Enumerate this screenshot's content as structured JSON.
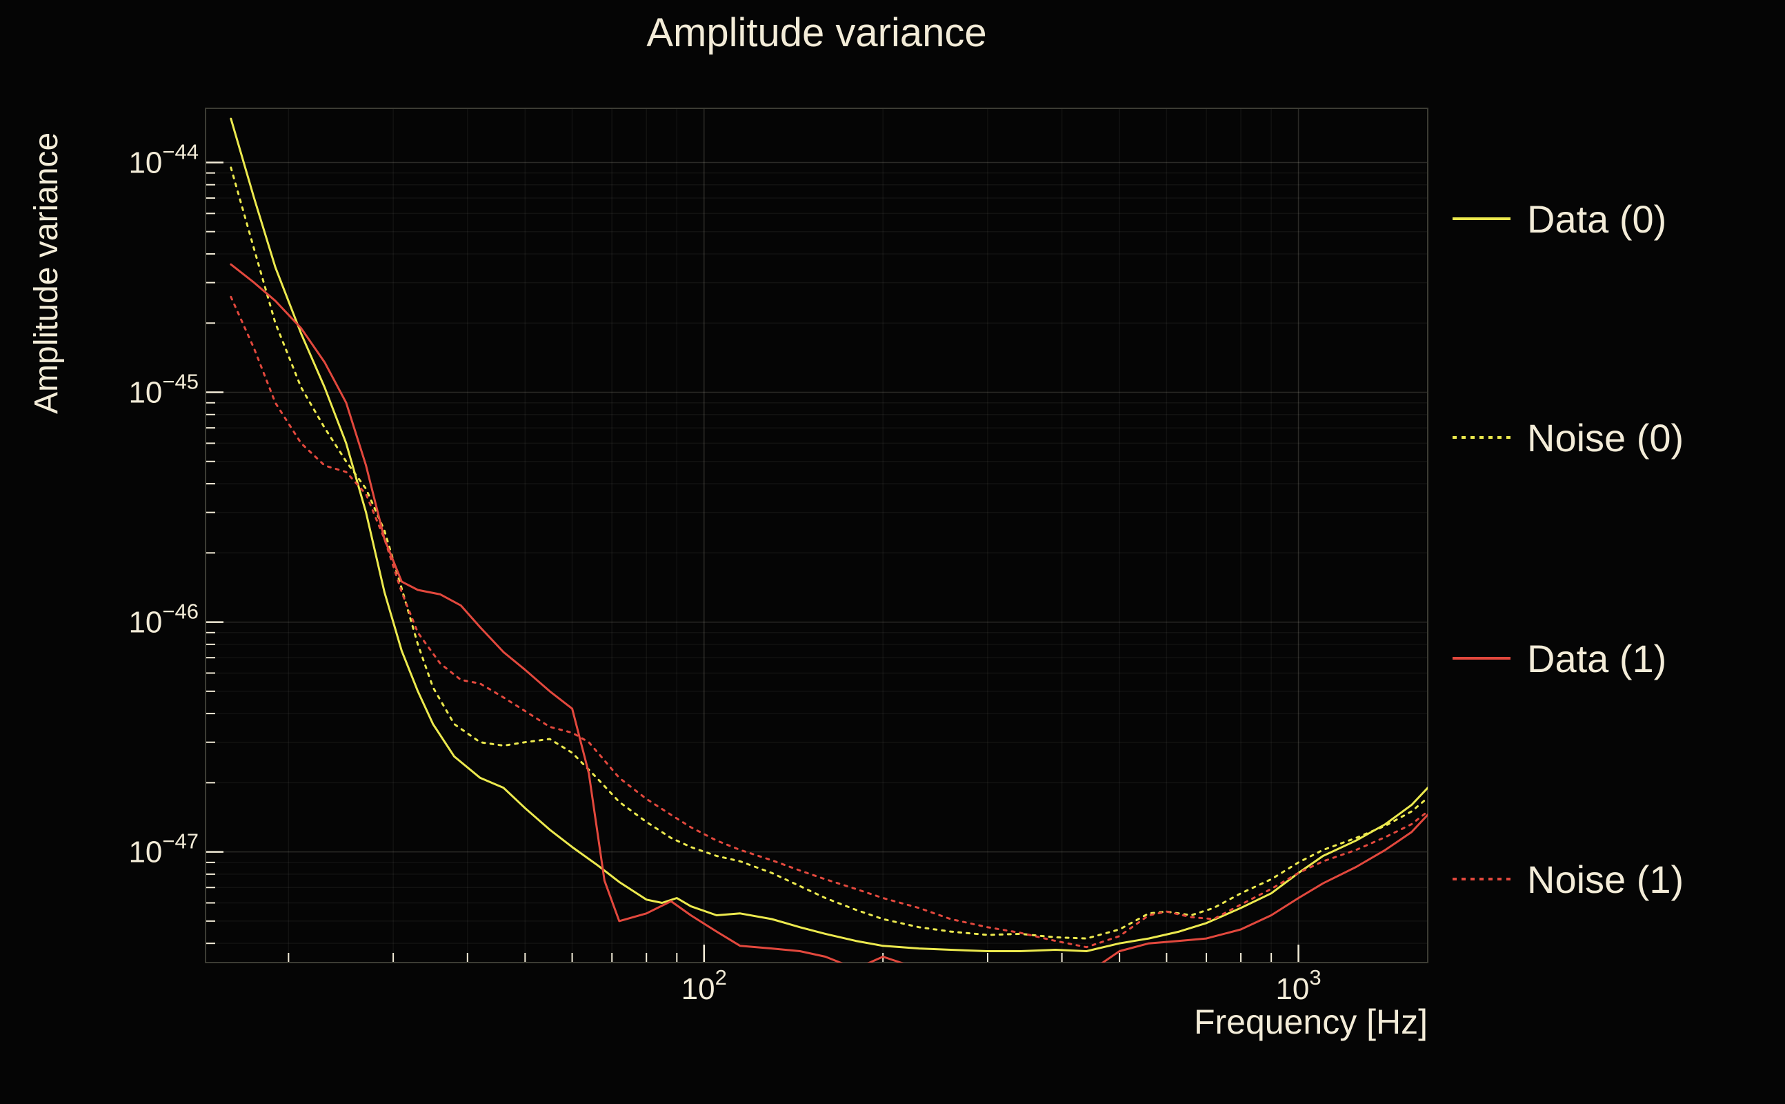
{
  "chart_data": {
    "type": "line",
    "title": "Amplitude variance",
    "xlabel": "Frequency [Hz]",
    "ylabel": "Amplitude variance",
    "x_scale": "log",
    "y_scale": "log",
    "xlim": [
      14.5,
      1650
    ],
    "ylim": [
      3.3e-48,
      1.72e-44
    ],
    "grid": true,
    "legend_position": "right",
    "x_ticks": [
      {
        "value": 100,
        "base": "10",
        "exp": "2"
      },
      {
        "value": 1000,
        "base": "10",
        "exp": "3"
      }
    ],
    "y_ticks": [
      {
        "value": 1e-44,
        "base": "10",
        "exp": "−44"
      },
      {
        "value": 1e-45,
        "base": "10",
        "exp": "−45"
      },
      {
        "value": 1e-46,
        "base": "10",
        "exp": "−46"
      },
      {
        "value": 1e-47,
        "base": "10",
        "exp": "−47"
      }
    ],
    "colors": {
      "background": "#050505",
      "text": "#f3ecd8",
      "frame": "#3c3c34",
      "grid_major": "rgba(243,236,216,0.16)",
      "grid_minor": "rgba(243,236,216,0.06)",
      "yellow": "#ece94e",
      "red": "#e2483d"
    },
    "series": [
      {
        "name": "Data (0)",
        "color": "#ece94e",
        "style": "solid",
        "points": [
          [
            16,
            1.55e-44
          ],
          [
            17.5,
            7e-45
          ],
          [
            19,
            3.5e-45
          ],
          [
            21,
            1.8e-45
          ],
          [
            23,
            1.05e-45
          ],
          [
            25,
            6e-46
          ],
          [
            27,
            3e-46
          ],
          [
            29,
            1.35e-46
          ],
          [
            31,
            7.5e-47
          ],
          [
            33,
            5e-47
          ],
          [
            35,
            3.6e-47
          ],
          [
            38,
            2.6e-47
          ],
          [
            42,
            2.1e-47
          ],
          [
            46,
            1.9e-47
          ],
          [
            50,
            1.55e-47
          ],
          [
            55,
            1.25e-47
          ],
          [
            60,
            1.05e-47
          ],
          [
            66,
            8.8e-48
          ],
          [
            72,
            7.4e-48
          ],
          [
            80,
            6.2e-48
          ],
          [
            85,
            6e-48
          ],
          [
            90,
            6.3e-48
          ],
          [
            95,
            5.8e-48
          ],
          [
            105,
            5.3e-48
          ],
          [
            115,
            5.4e-48
          ],
          [
            130,
            5.1e-48
          ],
          [
            145,
            4.7e-48
          ],
          [
            160,
            4.4e-48
          ],
          [
            180,
            4.1e-48
          ],
          [
            200,
            3.9e-48
          ],
          [
            230,
            3.8e-48
          ],
          [
            260,
            3.75e-48
          ],
          [
            300,
            3.7e-48
          ],
          [
            340,
            3.7e-48
          ],
          [
            390,
            3.75e-48
          ],
          [
            440,
            3.7e-48
          ],
          [
            500,
            4e-48
          ],
          [
            560,
            4.2e-48
          ],
          [
            630,
            4.5e-48
          ],
          [
            700,
            4.9e-48
          ],
          [
            800,
            5.7e-48
          ],
          [
            900,
            6.6e-48
          ],
          [
            1000,
            8.1e-48
          ],
          [
            1100,
            9.6e-48
          ],
          [
            1250,
            1.12e-47
          ],
          [
            1400,
            1.32e-47
          ],
          [
            1550,
            1.6e-47
          ],
          [
            1650,
            1.9e-47
          ]
        ]
      },
      {
        "name": "Noise (0)",
        "color": "#ece94e",
        "style": "dotted",
        "points": [
          [
            16,
            9.5e-45
          ],
          [
            17.5,
            4.2e-45
          ],
          [
            19,
            2e-45
          ],
          [
            21,
            1.05e-45
          ],
          [
            23,
            7e-46
          ],
          [
            25,
            5e-46
          ],
          [
            27,
            3.8e-46
          ],
          [
            29,
            2.5e-46
          ],
          [
            31,
            1.4e-46
          ],
          [
            33,
            8e-47
          ],
          [
            35,
            5.2e-47
          ],
          [
            38,
            3.6e-47
          ],
          [
            42,
            3e-47
          ],
          [
            46,
            2.9e-47
          ],
          [
            50,
            3e-47
          ],
          [
            55,
            3.1e-47
          ],
          [
            60,
            2.7e-47
          ],
          [
            66,
            2.1e-47
          ],
          [
            72,
            1.65e-47
          ],
          [
            80,
            1.35e-47
          ],
          [
            88,
            1.15e-47
          ],
          [
            95,
            1.05e-47
          ],
          [
            105,
            9.6e-48
          ],
          [
            115,
            9.1e-48
          ],
          [
            130,
            8.1e-48
          ],
          [
            145,
            7.1e-48
          ],
          [
            160,
            6.3e-48
          ],
          [
            180,
            5.6e-48
          ],
          [
            200,
            5.1e-48
          ],
          [
            230,
            4.7e-48
          ],
          [
            260,
            4.5e-48
          ],
          [
            300,
            4.35e-48
          ],
          [
            340,
            4.4e-48
          ],
          [
            390,
            4.25e-48
          ],
          [
            440,
            4.2e-48
          ],
          [
            500,
            4.6e-48
          ],
          [
            560,
            5.4e-48
          ],
          [
            600,
            5.5e-48
          ],
          [
            660,
            5.3e-48
          ],
          [
            720,
            5.7e-48
          ],
          [
            800,
            6.6e-48
          ],
          [
            900,
            7.6e-48
          ],
          [
            1000,
            9e-48
          ],
          [
            1100,
            1.02e-47
          ],
          [
            1250,
            1.15e-47
          ],
          [
            1400,
            1.3e-47
          ],
          [
            1550,
            1.5e-47
          ],
          [
            1650,
            1.72e-47
          ]
        ]
      },
      {
        "name": "Data (1)",
        "color": "#e2483d",
        "style": "solid",
        "points": [
          [
            16,
            3.6e-45
          ],
          [
            17.5,
            3e-45
          ],
          [
            19,
            2.5e-45
          ],
          [
            21,
            1.9e-45
          ],
          [
            23,
            1.35e-45
          ],
          [
            25,
            9e-46
          ],
          [
            27,
            4.8e-46
          ],
          [
            29,
            2.3e-46
          ],
          [
            31,
            1.5e-46
          ],
          [
            33,
            1.38e-46
          ],
          [
            36,
            1.32e-46
          ],
          [
            39,
            1.18e-46
          ],
          [
            42,
            9.5e-47
          ],
          [
            46,
            7.4e-47
          ],
          [
            50,
            6.2e-47
          ],
          [
            55,
            5e-47
          ],
          [
            60,
            4.2e-47
          ],
          [
            64,
            2.2e-47
          ],
          [
            68,
            7.5e-48
          ],
          [
            72,
            5e-48
          ],
          [
            80,
            5.4e-48
          ],
          [
            88,
            6.1e-48
          ],
          [
            95,
            5.3e-48
          ],
          [
            105,
            4.5e-48
          ],
          [
            115,
            3.9e-48
          ],
          [
            130,
            3.8e-48
          ],
          [
            145,
            3.7e-48
          ],
          [
            160,
            3.5e-48
          ],
          [
            180,
            3.1e-48
          ],
          [
            200,
            3.5e-48
          ],
          [
            230,
            3.1e-48
          ],
          [
            260,
            2.9e-48
          ],
          [
            300,
            3e-48
          ],
          [
            340,
            3.1e-48
          ],
          [
            390,
            3.05e-48
          ],
          [
            440,
            2.95e-48
          ],
          [
            500,
            3.7e-48
          ],
          [
            560,
            4e-48
          ],
          [
            630,
            4.1e-48
          ],
          [
            700,
            4.2e-48
          ],
          [
            800,
            4.6e-48
          ],
          [
            900,
            5.3e-48
          ],
          [
            1000,
            6.3e-48
          ],
          [
            1100,
            7.3e-48
          ],
          [
            1250,
            8.6e-48
          ],
          [
            1400,
            1.02e-47
          ],
          [
            1550,
            1.22e-47
          ],
          [
            1650,
            1.45e-47
          ]
        ]
      },
      {
        "name": "Noise (1)",
        "color": "#e2483d",
        "style": "dotted",
        "points": [
          [
            16,
            2.6e-45
          ],
          [
            17.5,
            1.55e-45
          ],
          [
            19,
            9e-46
          ],
          [
            21,
            6e-46
          ],
          [
            23,
            4.8e-46
          ],
          [
            25,
            4.5e-46
          ],
          [
            27,
            3.6e-46
          ],
          [
            29,
            2.3e-46
          ],
          [
            31,
            1.35e-46
          ],
          [
            33,
            9e-47
          ],
          [
            36,
            6.6e-47
          ],
          [
            39,
            5.6e-47
          ],
          [
            42,
            5.4e-47
          ],
          [
            46,
            4.7e-47
          ],
          [
            50,
            4.1e-47
          ],
          [
            55,
            3.5e-47
          ],
          [
            60,
            3.3e-47
          ],
          [
            64,
            3e-47
          ],
          [
            68,
            2.5e-47
          ],
          [
            72,
            2.1e-47
          ],
          [
            80,
            1.7e-47
          ],
          [
            88,
            1.45e-47
          ],
          [
            95,
            1.28e-47
          ],
          [
            105,
            1.12e-47
          ],
          [
            115,
            1.02e-47
          ],
          [
            130,
            9.2e-48
          ],
          [
            145,
            8.3e-48
          ],
          [
            160,
            7.6e-48
          ],
          [
            180,
            6.9e-48
          ],
          [
            200,
            6.3e-48
          ],
          [
            230,
            5.7e-48
          ],
          [
            260,
            5.1e-48
          ],
          [
            300,
            4.7e-48
          ],
          [
            340,
            4.45e-48
          ],
          [
            390,
            4.1e-48
          ],
          [
            440,
            3.85e-48
          ],
          [
            500,
            4.3e-48
          ],
          [
            560,
            5.3e-48
          ],
          [
            600,
            5.5e-48
          ],
          [
            660,
            5.2e-48
          ],
          [
            720,
            5.1e-48
          ],
          [
            800,
            5.9e-48
          ],
          [
            900,
            6.9e-48
          ],
          [
            1000,
            8.1e-48
          ],
          [
            1100,
            9.1e-48
          ],
          [
            1250,
            1.02e-47
          ],
          [
            1400,
            1.16e-47
          ],
          [
            1550,
            1.32e-47
          ],
          [
            1650,
            1.5e-47
          ]
        ]
      }
    ]
  }
}
